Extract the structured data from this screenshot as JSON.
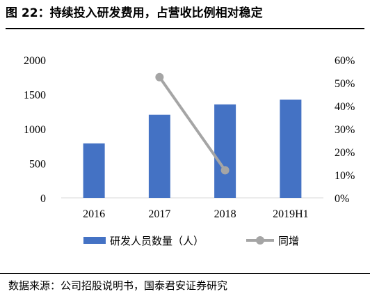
{
  "figure": {
    "title": "图 22：持续投入研发费用，占营收比例相对稳定",
    "source": "数据来源：公司招股说明书，国泰君安证券研究"
  },
  "chart_data": {
    "type": "bar",
    "categories": [
      "2016",
      "2017",
      "2018",
      "2019H1"
    ],
    "series": [
      {
        "name": "研发人员数量（人）",
        "type": "bar",
        "axis": "left",
        "values": [
          790,
          1205,
          1355,
          1425
        ],
        "color": "#4472C4"
      },
      {
        "name": "同增",
        "type": "line",
        "axis": "right",
        "values": [
          null,
          0.525,
          0.12,
          null
        ],
        "color": "#A5A5A5"
      }
    ],
    "y_left": {
      "ticks": [
        "0",
        "500",
        "1000",
        "1500",
        "2000"
      ],
      "ylim": [
        0,
        2000
      ]
    },
    "y_right": {
      "ticks": [
        "0%",
        "10%",
        "20%",
        "30%",
        "40%",
        "50%",
        "60%"
      ],
      "ylim": [
        0,
        0.6
      ]
    },
    "grid": false,
    "legend_position": "bottom"
  }
}
